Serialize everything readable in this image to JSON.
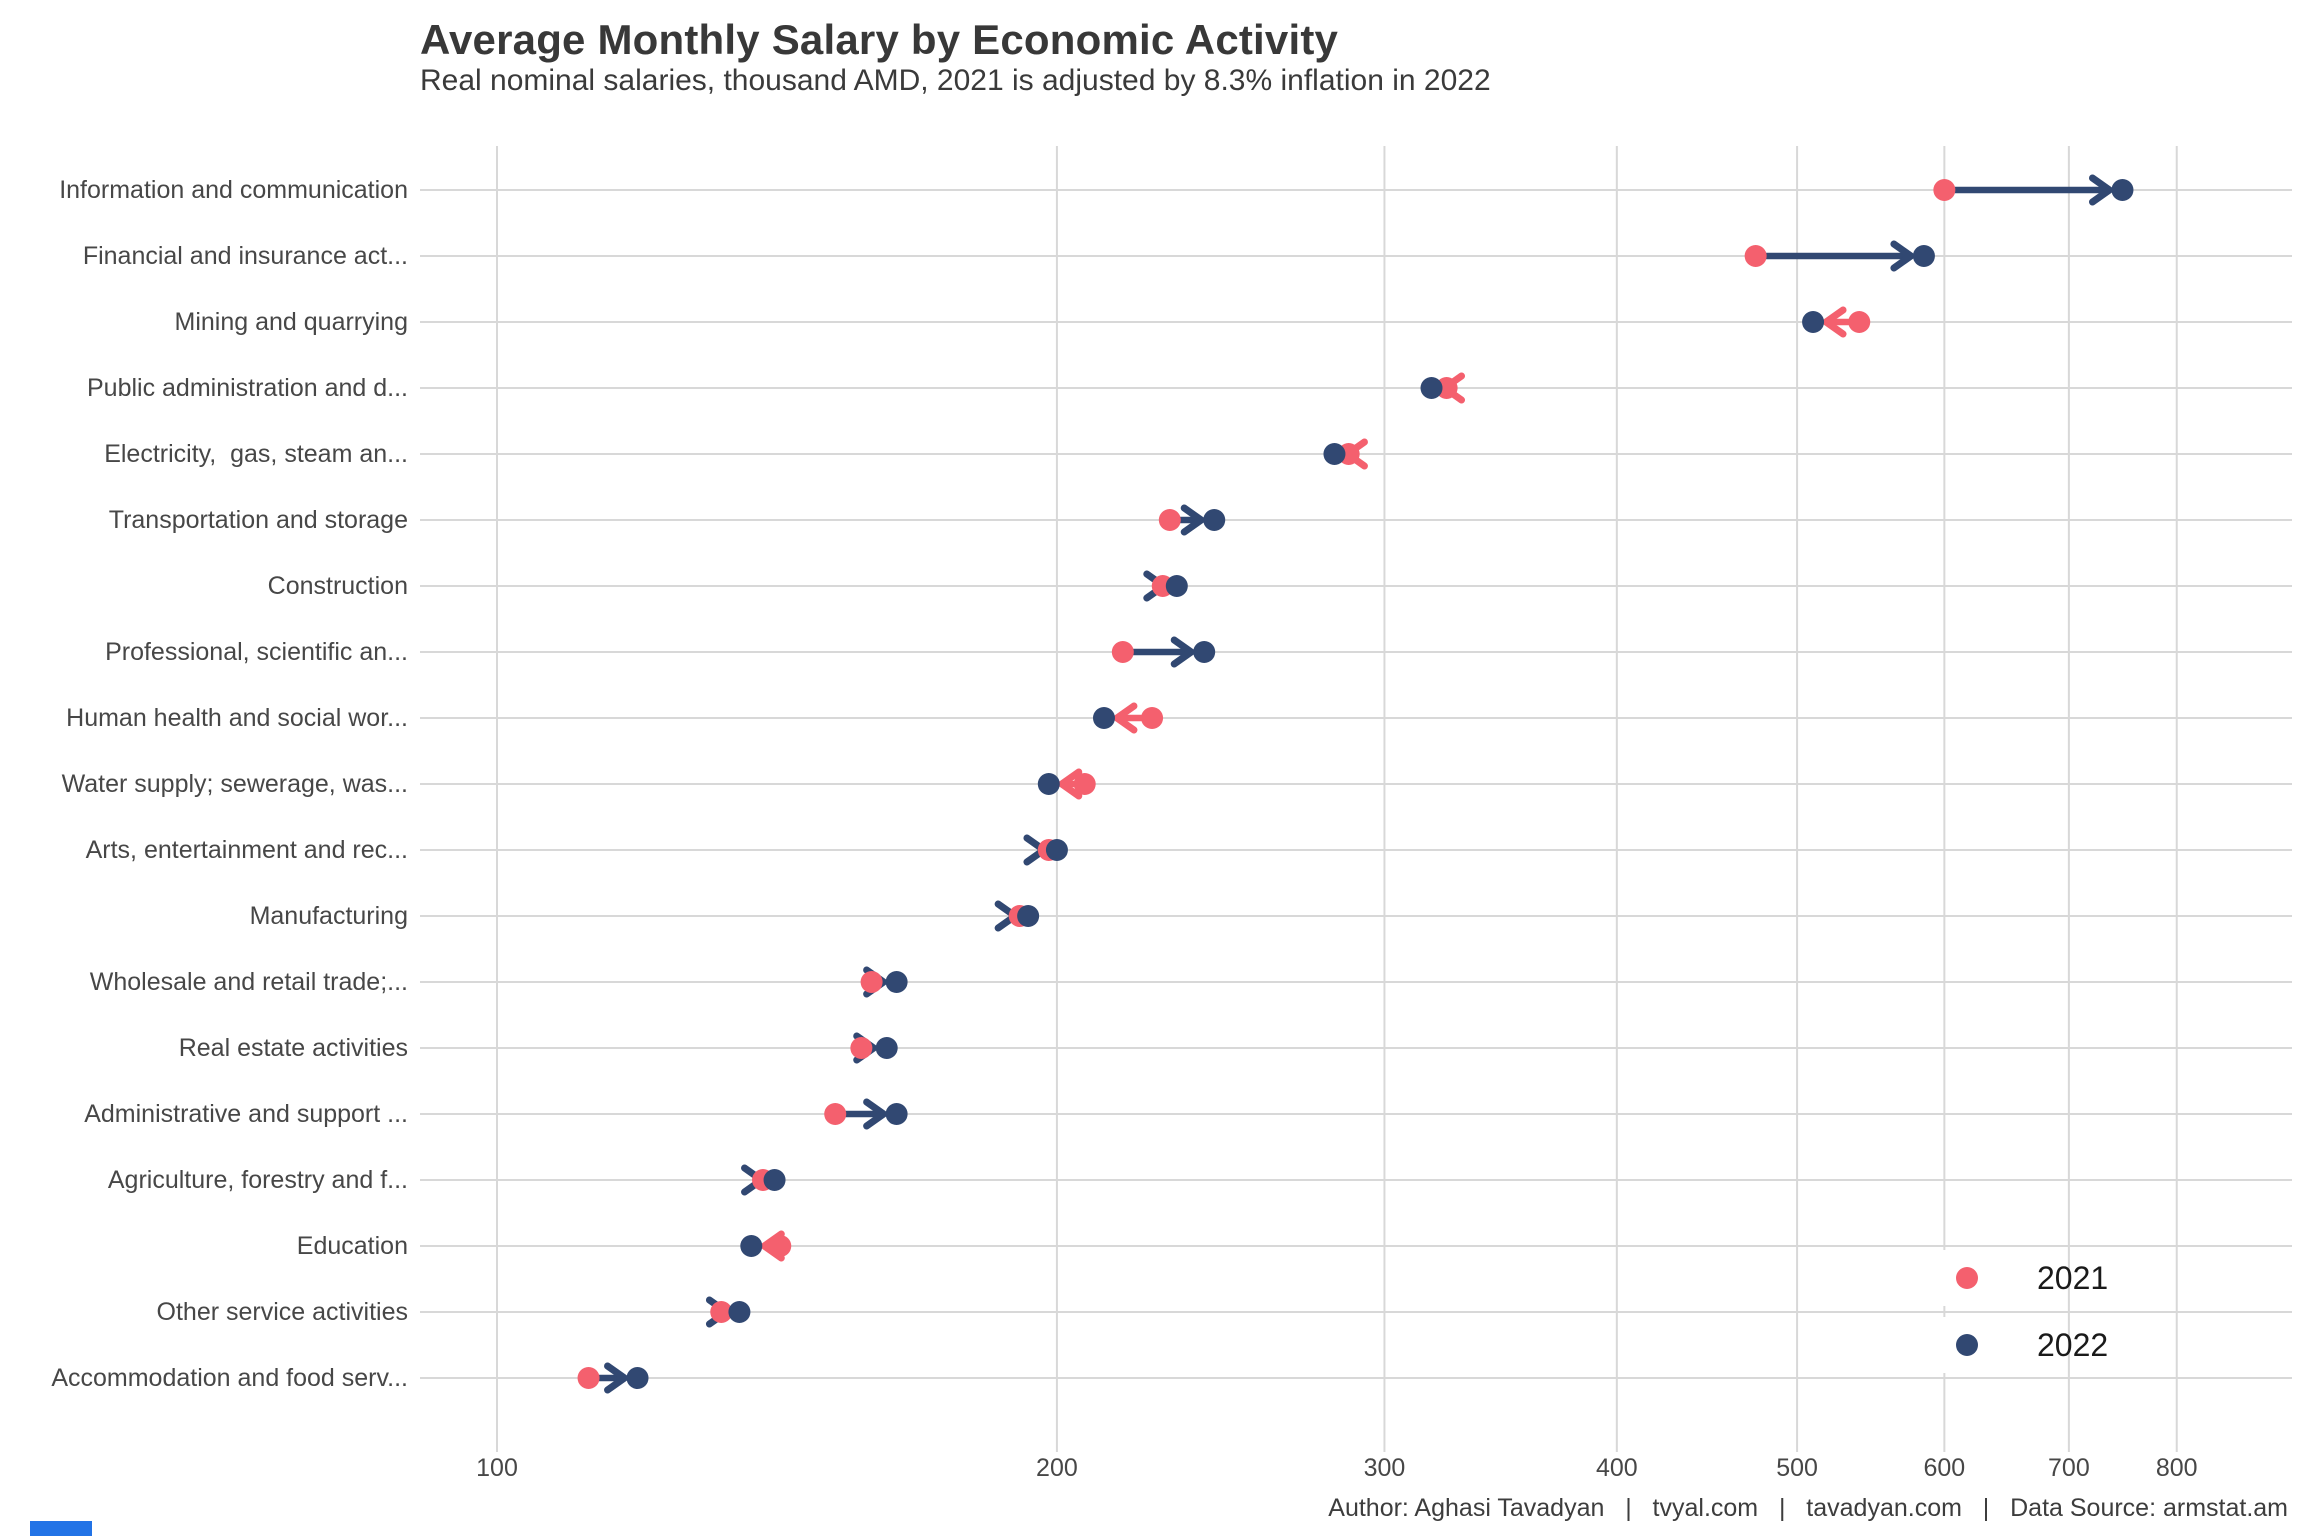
{
  "page": {
    "title": "Average Monthly Salary by Economic Activity",
    "subtitle": "Real nominal salaries, thousand AMD, 2021 is adjusted by 8.3% inflation in 2022",
    "footer": "Author: Aghasi Tavadyan   |   tvyal.com   |   tavadyan.com   |   Data Source: armstat.am"
  },
  "colors": {
    "year2021": "#F4606E",
    "year2022": "#314872",
    "grid": "#D8D8D8",
    "title_text": "#383838",
    "axis_text": "#474747",
    "legend_text": "#1a1a1a",
    "footer_text": "#3d3d3d",
    "accent_bar": "#2273E6",
    "background": "#FFFFFF"
  },
  "legend": {
    "items": [
      {
        "label": "2021",
        "color": "#F4606E"
      },
      {
        "label": "2022",
        "color": "#314872"
      }
    ]
  },
  "chart_data": {
    "type": "scatter",
    "variant": "dumbbell-arrow",
    "title": "Average Monthly Salary by Economic Activity",
    "subtitle": "Real nominal salaries, thousand AMD, 2021 is adjusted by 8.3% inflation in 2022",
    "x_scale": "log10",
    "x_ticks": [
      100,
      200,
      300,
      400,
      500,
      600,
      700,
      800
    ],
    "xlim": [
      91,
      923
    ],
    "grid": true,
    "legend_position": "inside-bottom-right",
    "arrow_rule": "arrow points from 2021 value to 2022 value; navy when increasing, pink when decreasing",
    "categories": [
      "Information and communication",
      "Financial and insurance act...",
      "Mining and quarrying",
      "Public administration and d...",
      "Electricity,  gas, steam an...",
      "Transportation and storage",
      "Construction",
      "Professional, scientific an...",
      "Human health and social wor...",
      "Water supply; sewerage, was...",
      "Arts, entertainment and rec...",
      "Manufacturing",
      "Wholesale and retail trade;...",
      "Real estate activities",
      "Administrative and support ...",
      "Agriculture, forestry and f...",
      "Education",
      "Other service activities",
      "Accommodation and food serv..."
    ],
    "series": [
      {
        "name": "2021",
        "color": "#F4606E",
        "values": [
          600,
          475,
          540,
          324,
          287,
          230,
          228,
          217,
          225,
          207,
          198,
          191,
          159,
          157,
          152,
          139,
          142,
          132,
          112
        ]
      },
      {
        "name": "2022",
        "color": "#314872",
        "values": [
          748,
          585,
          510,
          318,
          282,
          243,
          232,
          240,
          212,
          198,
          200,
          193,
          164,
          162,
          164,
          141,
          137,
          135,
          119
        ]
      }
    ]
  }
}
